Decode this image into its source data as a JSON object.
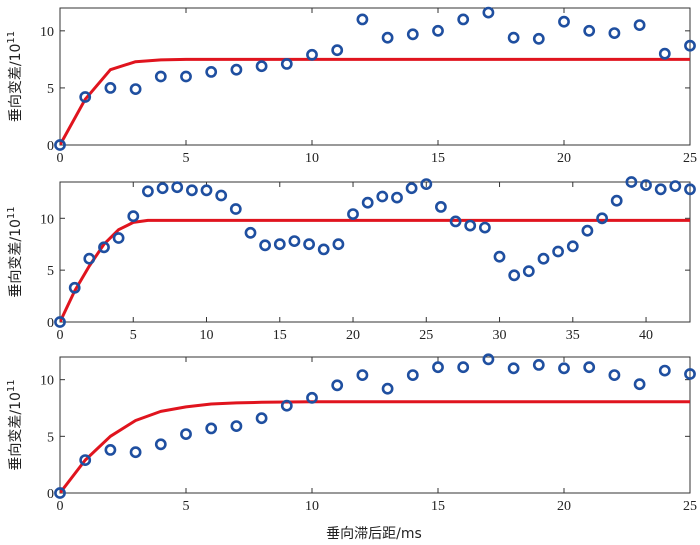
{
  "colors": {
    "marker": "#1f4fa0",
    "fit_line": "#e0141e",
    "axis": "#333333"
  },
  "xlabel": "垂向滞后距/ms",
  "chart_data": [
    {
      "type": "scatter",
      "ylabel": "垂向变差/10",
      "ylabel_exp": "11",
      "xlim": [
        0,
        25
      ],
      "ylim": [
        0,
        12
      ],
      "xticks": [
        0,
        5,
        10,
        15,
        20,
        25
      ],
      "yticks": [
        0,
        5,
        10
      ],
      "points": {
        "x": [
          0,
          1,
          2,
          3,
          4,
          5,
          6,
          7,
          8,
          9,
          10,
          11,
          12,
          13,
          14,
          15,
          16,
          17,
          18,
          19,
          20,
          21,
          22,
          23,
          24,
          25
        ],
        "y": [
          0,
          4.2,
          5.0,
          4.9,
          6.0,
          6.0,
          6.4,
          6.6,
          6.9,
          7.1,
          7.9,
          8.3,
          11.0,
          9.4,
          9.7,
          10.0,
          11.0,
          11.6,
          9.4,
          9.3,
          10.8,
          10.0,
          9.8,
          10.5,
          8.0,
          8.7
        ]
      },
      "fit": {
        "x": [
          0,
          1,
          2,
          3,
          4,
          5,
          8,
          12,
          16,
          20,
          25
        ],
        "y": [
          0,
          4.0,
          6.6,
          7.3,
          7.45,
          7.5,
          7.5,
          7.5,
          7.5,
          7.5,
          7.5
        ]
      }
    },
    {
      "type": "scatter",
      "ylabel": "垂向变差/10",
      "ylabel_exp": "11",
      "xlim": [
        0,
        43
      ],
      "ylim": [
        0,
        13.5
      ],
      "xticks": [
        0,
        5,
        10,
        15,
        20,
        25,
        30,
        35,
        40
      ],
      "yticks": [
        0,
        5,
        10
      ],
      "points": {
        "x": [
          0,
          1,
          2,
          3,
          4,
          5,
          6,
          7,
          8,
          9,
          10,
          11,
          12,
          13,
          14,
          15,
          16,
          17,
          18,
          19,
          20,
          21,
          22,
          23,
          24,
          25,
          26,
          27,
          28,
          29,
          30,
          31,
          32,
          33,
          34,
          35,
          36,
          37,
          38,
          39,
          40,
          41,
          42,
          43
        ],
        "y": [
          0,
          3.3,
          6.1,
          7.2,
          8.1,
          10.2,
          12.6,
          12.9,
          13.0,
          12.7,
          12.7,
          12.2,
          10.9,
          8.6,
          7.4,
          7.5,
          7.8,
          7.5,
          7.0,
          7.5,
          10.4,
          11.5,
          12.1,
          12.0,
          12.9,
          13.3,
          11.1,
          9.7,
          9.3,
          9.1,
          6.3,
          4.5,
          4.9,
          6.1,
          6.8,
          7.3,
          8.8,
          10.0,
          11.7,
          13.5,
          13.2,
          12.8,
          13.1,
          12.8
        ]
      },
      "fit": {
        "x": [
          0,
          1,
          2,
          3,
          4,
          5,
          6,
          8,
          12,
          20,
          30,
          43
        ],
        "y": [
          0,
          3.0,
          5.4,
          7.5,
          8.9,
          9.6,
          9.8,
          9.8,
          9.8,
          9.8,
          9.8,
          9.8
        ]
      }
    },
    {
      "type": "scatter",
      "ylabel": "垂向变差/10",
      "ylabel_exp": "11",
      "xlim": [
        0,
        25
      ],
      "ylim": [
        0,
        12
      ],
      "xticks": [
        0,
        5,
        10,
        15,
        20,
        25
      ],
      "yticks": [
        0,
        5,
        10
      ],
      "points": {
        "x": [
          0,
          1,
          2,
          3,
          4,
          5,
          6,
          7,
          8,
          9,
          10,
          11,
          12,
          13,
          14,
          15,
          16,
          17,
          18,
          19,
          20,
          21,
          22,
          23,
          24,
          25
        ],
        "y": [
          0,
          2.9,
          3.8,
          3.6,
          4.3,
          5.2,
          5.7,
          5.9,
          6.6,
          7.7,
          8.4,
          9.5,
          10.4,
          9.2,
          10.4,
          11.1,
          11.1,
          11.8,
          11.0,
          11.3,
          11.0,
          11.1,
          10.4,
          9.6,
          10.8,
          10.5
        ]
      },
      "fit": {
        "x": [
          0,
          1,
          2,
          3,
          4,
          5,
          6,
          7,
          8,
          10,
          15,
          20,
          25
        ],
        "y": [
          0,
          2.9,
          5.0,
          6.4,
          7.2,
          7.6,
          7.85,
          7.95,
          8.0,
          8.05,
          8.05,
          8.05,
          8.05
        ]
      }
    }
  ]
}
